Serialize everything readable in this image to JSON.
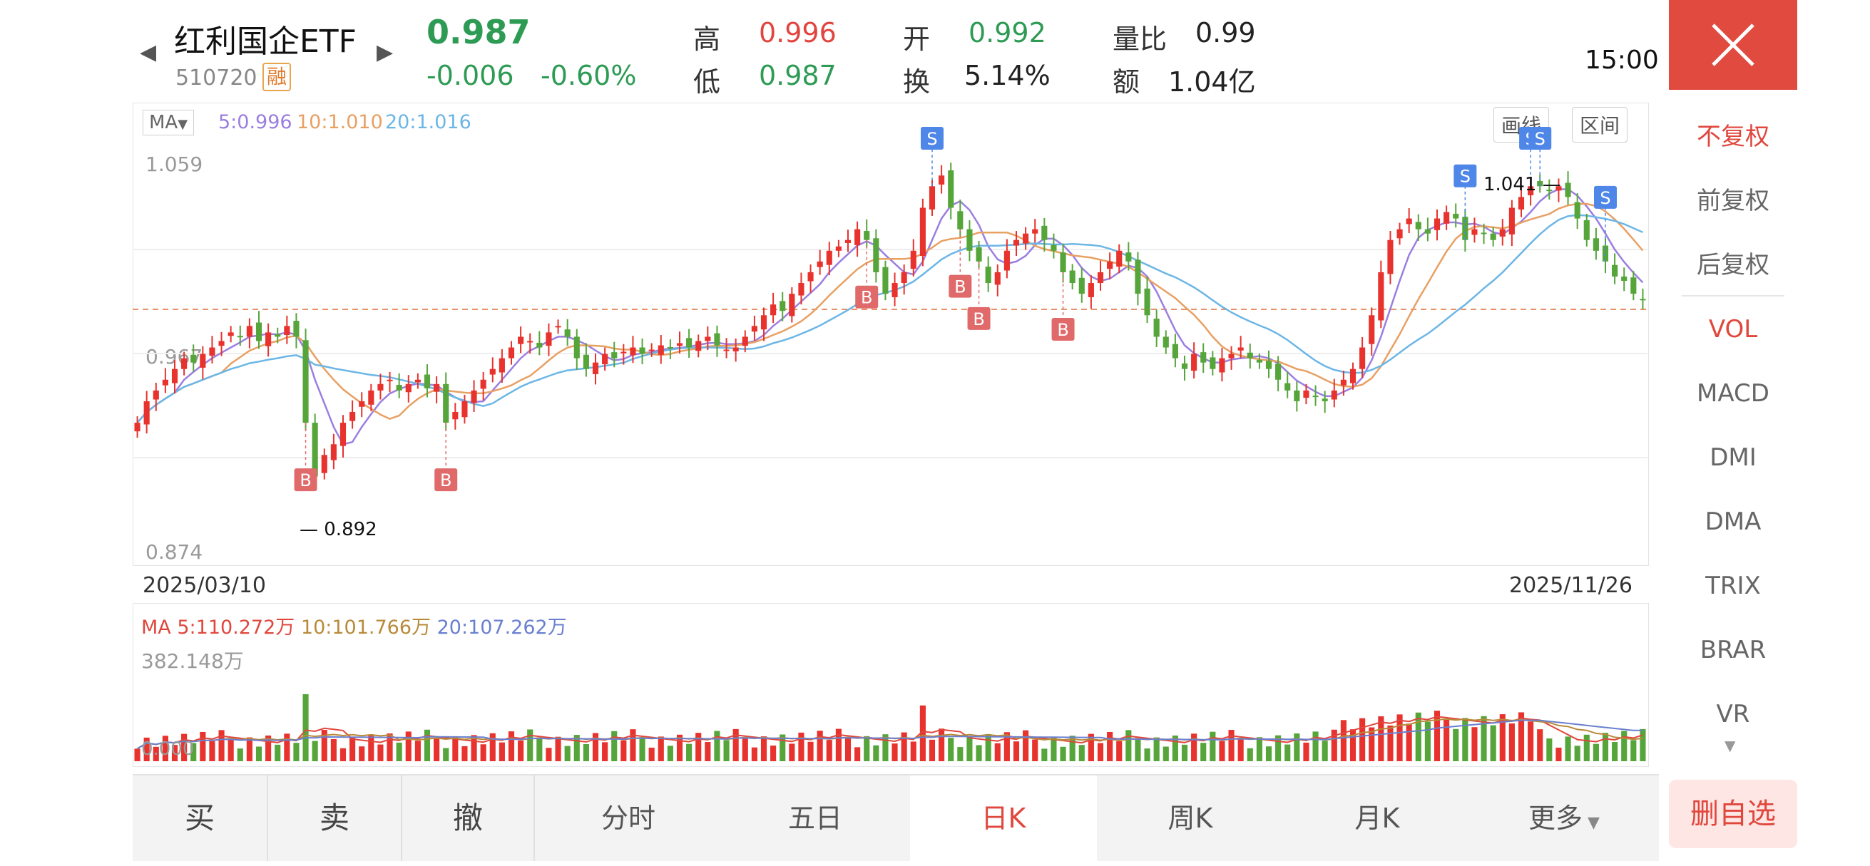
{
  "header": {
    "name": "红利国企ETF",
    "code": "510720",
    "badge": "融",
    "price": "0.987",
    "change": "-0.006",
    "change_pct": "-0.60%",
    "stats": [
      {
        "label": "高",
        "value": "0.996",
        "color": "#e2453f"
      },
      {
        "label": "低",
        "value": "0.987",
        "color": "#2e9b55"
      },
      {
        "label": "开",
        "value": "0.992",
        "color": "#2e9b55"
      },
      {
        "label": "换",
        "value": "5.14%",
        "color": "#222222"
      },
      {
        "label": "量比",
        "value": "0.99",
        "color": "#222222"
      },
      {
        "label": "额",
        "value": "1.04亿",
        "color": "#222222"
      }
    ],
    "time": "15:00",
    "close_icon": "close-icon",
    "prev_icon": "chevron-left-icon",
    "next_icon": "chevron-right-icon"
  },
  "sidebar": {
    "items": [
      "不复权",
      "前复权",
      "后复权",
      "VOL",
      "MACD",
      "DMI",
      "DMA",
      "TRIX",
      "BRAR",
      "VR"
    ],
    "active": [
      "不复权",
      "VOL"
    ],
    "more_icon": "caret-down-icon"
  },
  "kchart": {
    "ma_select": "MA",
    "ma5": "5:0.996",
    "ma10": "10:1.010",
    "ma20": "20:1.016",
    "tools": [
      "画线",
      "区间"
    ],
    "y_top": "1.059",
    "y_mid": "0.967",
    "y_bottom": "0.874",
    "high_marker": "1.041",
    "low_marker": "0.892",
    "date_start": "2025/03/10",
    "date_end": "2025/11/26",
    "buy_label": "B",
    "sell_label": "S",
    "colors": {
      "up": "#e8322d",
      "down": "#55a53a",
      "ma5": "#9b7fe0",
      "ma10": "#e8a063",
      "ma20": "#6cb6e6"
    }
  },
  "volchart": {
    "ma_label": "MA",
    "ma5": "5:110.272万",
    "ma10": "10:101.766万",
    "ma20": "20:107.262万",
    "y_top": "382.148万",
    "y_bottom": "0.000"
  },
  "tabs": [
    "买",
    "卖",
    "撤",
    "分时",
    "五日",
    "日K",
    "周K",
    "月K",
    "更多"
  ],
  "active_tab": "日K",
  "delete_button": "删自选",
  "chart_data": {
    "type": "candlestick",
    "date_range": [
      "2025/03/10",
      "2025/11/26"
    ],
    "ylim": [
      0.874,
      1.059
    ],
    "closes": [
      0.93,
      0.94,
      0.945,
      0.95,
      0.955,
      0.96,
      0.958,
      0.962,
      0.965,
      0.968,
      0.972,
      0.97,
      0.975,
      0.968,
      0.972,
      0.97,
      0.975,
      0.97,
      0.93,
      0.905,
      0.915,
      0.92,
      0.93,
      0.935,
      0.94,
      0.945,
      0.948,
      0.95,
      0.945,
      0.948,
      0.95,
      0.946,
      0.948,
      0.93,
      0.935,
      0.94,
      0.945,
      0.95,
      0.955,
      0.96,
      0.965,
      0.97,
      0.968,
      0.965,
      0.972,
      0.975,
      0.97,
      0.96,
      0.955,
      0.958,
      0.962,
      0.96,
      0.963,
      0.965,
      0.962,
      0.964,
      0.966,
      0.965,
      0.967,
      0.965,
      0.968,
      0.97,
      0.966,
      0.964,
      0.965,
      0.97,
      0.975,
      0.98,
      0.985,
      0.982,
      0.99,
      0.995,
      1.0,
      1.005,
      1.01,
      1.012,
      1.015,
      1.02,
      1.015,
      1.0,
      0.99,
      0.995,
      1.0,
      1.01,
      1.03,
      1.04,
      1.045,
      1.03,
      1.02,
      1.01,
      1.005,
      0.995,
      1.0,
      1.01,
      1.015,
      1.018,
      1.02,
      1.015,
      1.01,
      1.0,
      0.995,
      0.99,
      0.995,
      1.0,
      1.005,
      1.01,
      1.005,
      0.99,
      0.98,
      0.97,
      0.965,
      0.96,
      0.955,
      0.962,
      0.958,
      0.955,
      0.96,
      0.962,
      0.965,
      0.96,
      0.958,
      0.955,
      0.95,
      0.945,
      0.94,
      0.945,
      0.942,
      0.94,
      0.945,
      0.95,
      0.955,
      0.965,
      0.98,
      1.0,
      1.015,
      1.02,
      1.025,
      1.02,
      1.018,
      1.025,
      1.028,
      1.025,
      1.015,
      1.02,
      1.018,
      1.015,
      1.02,
      1.03,
      1.035,
      1.04,
      1.04,
      1.038,
      1.04,
      1.035,
      1.025,
      1.015,
      1.01,
      1.005,
      0.998,
      0.996,
      0.99,
      0.987
    ],
    "volume_ylim": [
      0,
      382.148
    ],
    "volume_unit": "万"
  }
}
